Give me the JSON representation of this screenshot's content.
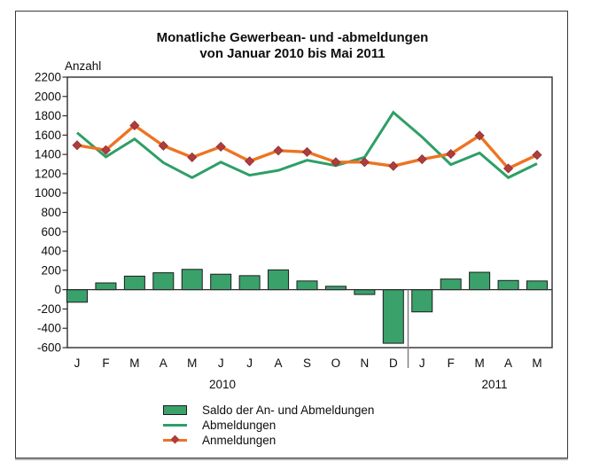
{
  "chart_data": {
    "type": "combo_bar_line",
    "title": "Monatliche Gewerbean- und -abmeldungen",
    "subtitle": "von Januar 2010 bis Mai 2011",
    "ylabel": "Anzahl",
    "ylim": [
      -600,
      2200
    ],
    "ytick_step": 200,
    "grid": false,
    "legend_position": "bottom-left",
    "categories": [
      "J",
      "F",
      "M",
      "A",
      "M",
      "J",
      "J",
      "A",
      "S",
      "O",
      "N",
      "D",
      "J",
      "F",
      "M",
      "A",
      "M"
    ],
    "year_groups": [
      {
        "label": "2010",
        "month_index_span": [
          0,
          11
        ]
      },
      {
        "label": "2011",
        "month_index_span": [
          12,
          16
        ]
      }
    ],
    "series": [
      {
        "name": "Saldo der An- und Abmeldungen",
        "type": "bar",
        "values": [
          -130,
          70,
          140,
          175,
          210,
          160,
          145,
          205,
          90,
          35,
          -50,
          -555,
          -230,
          110,
          180,
          95,
          90
        ]
      },
      {
        "name": "Abmeldungen",
        "type": "line",
        "values": [
          1625,
          1375,
          1560,
          1315,
          1160,
          1320,
          1185,
          1235,
          1340,
          1285,
          1370,
          1835,
          1580,
          1295,
          1415,
          1160,
          1305
        ]
      },
      {
        "name": "Anmeldungen",
        "type": "line",
        "marker": "diamond",
        "values": [
          1495,
          1445,
          1700,
          1490,
          1370,
          1480,
          1330,
          1440,
          1425,
          1320,
          1320,
          1280,
          1350,
          1405,
          1595,
          1255,
          1395
        ]
      }
    ]
  },
  "colors": {
    "bar_fill": "#3AA16B",
    "bar_border": "#1c1c1c",
    "abmeldungen_line": "#2E9F66",
    "anmeldungen_line": "#ED7423",
    "marker_fill": "#B03C3C",
    "axis": "#2e2e2e",
    "divider": "#808080"
  }
}
